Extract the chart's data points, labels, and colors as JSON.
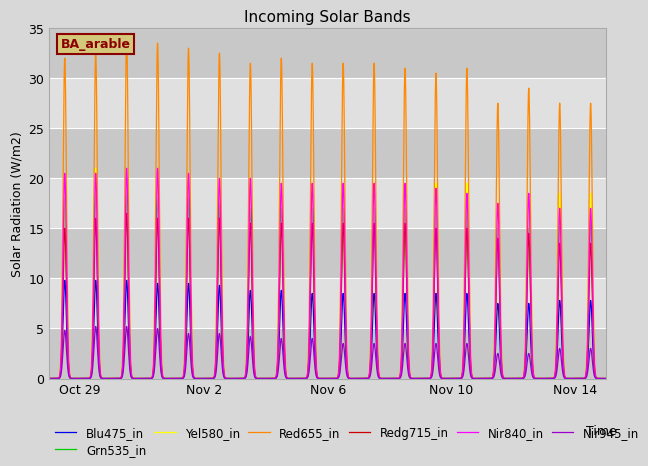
{
  "title": "Incoming Solar Bands",
  "xlabel": "Time",
  "ylabel": "Solar Radiation (W/m2)",
  "ylim": [
    0,
    35
  ],
  "fig_facecolor": "#d8d8d8",
  "ax_facecolor": "#d8d8d8",
  "annotation_text": "BA_arable",
  "annotation_color": "#8B0000",
  "annotation_bg": "#d4c97a",
  "legend_entries": [
    "Blu475_in",
    "Grn535_in",
    "Yel580_in",
    "Red655_in",
    "Redg715_in",
    "Nir840_in",
    "Nir945_in"
  ],
  "line_colors": [
    "#0000ee",
    "#00cc00",
    "#ffff00",
    "#ff8800",
    "#cc0000",
    "#ff00ff",
    "#9900cc"
  ],
  "n_days": 18,
  "sigma": 0.055,
  "peak_heights": {
    "Blu475_in": [
      9.8,
      9.8,
      9.8,
      9.5,
      9.5,
      9.3,
      8.8,
      8.8,
      8.5,
      8.5,
      8.5,
      8.5,
      8.5,
      8.5,
      7.5,
      7.5,
      7.8,
      7.8
    ],
    "Grn535_in": [
      18.0,
      18.5,
      18.5,
      18.0,
      18.0,
      17.5,
      17.0,
      17.0,
      17.0,
      17.0,
      17.0,
      17.0,
      17.0,
      17.0,
      15.0,
      15.0,
      16.0,
      16.0
    ],
    "Yel580_in": [
      20.5,
      21.0,
      21.0,
      20.5,
      20.5,
      20.0,
      19.5,
      19.5,
      19.5,
      19.5,
      19.5,
      19.5,
      19.5,
      19.5,
      17.5,
      17.5,
      18.5,
      18.5
    ],
    "Red655_in": [
      32.0,
      32.5,
      34.0,
      33.5,
      33.0,
      32.5,
      31.5,
      32.0,
      31.5,
      31.5,
      31.5,
      31.0,
      30.5,
      31.0,
      27.5,
      29.0,
      27.5,
      27.5
    ],
    "Redg715_in": [
      15.0,
      16.0,
      16.5,
      16.0,
      16.0,
      16.0,
      15.5,
      15.5,
      15.5,
      15.5,
      15.5,
      15.5,
      15.0,
      15.0,
      14.0,
      14.5,
      13.5,
      13.5
    ],
    "Nir840_in": [
      20.5,
      20.5,
      21.0,
      21.0,
      20.5,
      20.0,
      20.0,
      19.5,
      19.5,
      19.5,
      19.5,
      19.5,
      19.0,
      18.5,
      17.5,
      18.5,
      17.0,
      17.0
    ],
    "Nir945_in": [
      4.8,
      5.2,
      5.2,
      5.0,
      4.5,
      4.5,
      4.2,
      4.0,
      4.0,
      3.5,
      3.5,
      3.5,
      3.5,
      3.5,
      2.5,
      2.5,
      3.0,
      3.0
    ]
  },
  "x_tick_labels": [
    "Oct 29",
    "Nov 2",
    "Nov 6",
    "Nov 10",
    "Nov 14"
  ],
  "x_tick_positions": [
    1.0,
    5.0,
    9.0,
    13.0,
    17.0
  ],
  "yticks": [
    0,
    5,
    10,
    15,
    20,
    25,
    30,
    35
  ],
  "grid_colors": [
    "#c8c8c8",
    "#e0e0e0"
  ]
}
